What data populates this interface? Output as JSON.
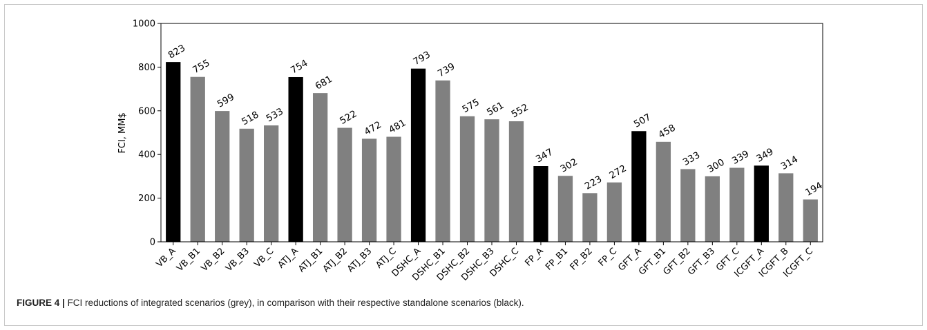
{
  "caption": {
    "label": "FIGURE 4 |",
    "text": "FCI reductions of integrated scenarios (grey), in comparison with their respective standalone scenarios (black)."
  },
  "colors": {
    "standalone": "#000000",
    "integrated": "#808080"
  },
  "chart_data": {
    "type": "bar",
    "title": "",
    "xlabel": "",
    "ylabel": "FCI, MM$",
    "ylim": [
      0,
      1000
    ],
    "yticks": [
      0,
      200,
      400,
      600,
      800,
      1000
    ],
    "grid": false,
    "categories": [
      "VB_A",
      "VB_B1",
      "VB_B2",
      "VB_B3",
      "VB_C",
      "ATJ_A",
      "ATJ_B1",
      "ATJ_B2",
      "ATJ_B3",
      "ATJ_C",
      "DSHC_A",
      "DSHC_B1",
      "DSHC_B2",
      "DSHC_B3",
      "DSHC_C",
      "FP_A",
      "FP_B1",
      "FP_B2",
      "FP_C",
      "GFT_A",
      "GFT_B1",
      "GFT_B2",
      "GFT_B3",
      "GFT_C",
      "ICGFT_A",
      "ICGFT_B",
      "ICGFT_C"
    ],
    "values": [
      823,
      755,
      599,
      518,
      533,
      754,
      681,
      522,
      472,
      481,
      793,
      739,
      575,
      561,
      552,
      347,
      302,
      223,
      272,
      507,
      458,
      333,
      300,
      339,
      349,
      314,
      194
    ],
    "bar_group": [
      "standalone",
      "integrated",
      "integrated",
      "integrated",
      "integrated",
      "standalone",
      "integrated",
      "integrated",
      "integrated",
      "integrated",
      "standalone",
      "integrated",
      "integrated",
      "integrated",
      "integrated",
      "standalone",
      "integrated",
      "integrated",
      "integrated",
      "standalone",
      "integrated",
      "integrated",
      "integrated",
      "integrated",
      "standalone",
      "integrated",
      "integrated"
    ]
  }
}
